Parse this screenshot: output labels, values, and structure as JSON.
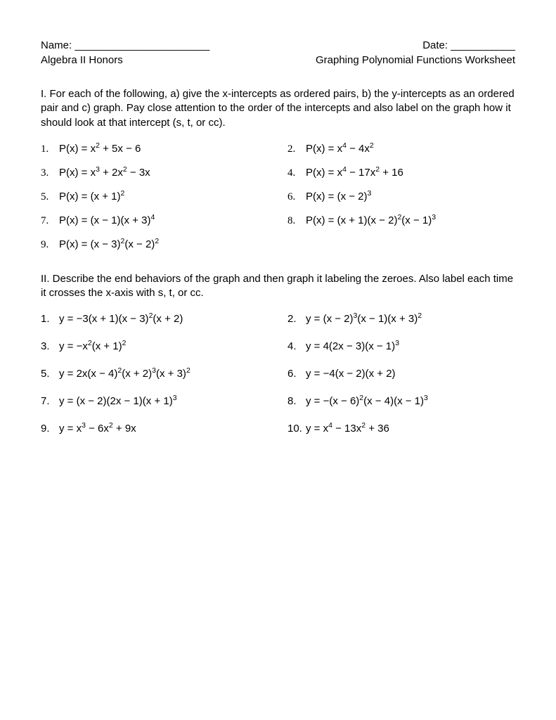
{
  "header": {
    "name_label": "Name: _______________________",
    "date_label": "Date: ___________",
    "course": "Algebra II Honors",
    "title": "Graphing Polynomial Functions Worksheet"
  },
  "section1": {
    "instructions": "I. For each of the following, a) give the x-intercepts as ordered pairs, b) the y-intercepts as an ordered pair and c) graph.  Pay close attention to the order of the intercepts and also label on the graph how it should look at that intercept (s, t, or cc).",
    "items": [
      {
        "n": "1.",
        "eq": "P(x) = x<sup>2</sup> + 5x − 6"
      },
      {
        "n": "2.",
        "eq": "P(x) = x<sup>4</sup> − 4x<sup>2</sup>"
      },
      {
        "n": "3.",
        "eq": "P(x) = x<sup>3</sup> + 2x<sup>2</sup> − 3x"
      },
      {
        "n": "4.",
        "eq": "P(x) = x<sup>4</sup> − 17x<sup>2</sup> + 16"
      },
      {
        "n": "5.",
        "eq": "P(x) = (x + 1)<sup>2</sup>"
      },
      {
        "n": "6.",
        "eq": "P(x) = (x − 2)<sup>3</sup>"
      },
      {
        "n": "7.",
        "eq": "P(x) = (x − 1)(x + 3)<sup>4</sup>"
      },
      {
        "n": "8.",
        "eq": "P(x) = (x + 1)(x − 2)<sup>2</sup>(x − 1)<sup>3</sup>"
      },
      {
        "n": "9.",
        "eq": "P(x) = (x − 3)<sup>2</sup>(x − 2)<sup>2</sup>"
      }
    ]
  },
  "section2": {
    "instructions": "II. Describe the end behaviors of the graph and then graph it labeling the zeroes.  Also label each time it crosses the x-axis with s, t, or cc.",
    "items": [
      {
        "n": "1.",
        "eq": "y = −3(x + 1)(x − 3)<sup>2</sup>(x + 2)"
      },
      {
        "n": "2.",
        "eq": "y = (x − 2)<sup>3</sup>(x − 1)(x + 3)<sup>2</sup>"
      },
      {
        "n": "3.",
        "eq": "y = −x<sup>2</sup>(x + 1)<sup>2</sup>"
      },
      {
        "n": "4.",
        "eq": "y = 4(2x − 3)(x − 1)<sup>3</sup>"
      },
      {
        "n": "5.",
        "eq": "y = 2x(x − 4)<sup>2</sup>(x + 2)<sup>3</sup>(x + 3)<sup>2</sup>"
      },
      {
        "n": "6.",
        "eq": "y = −4(x − 2)(x + 2)"
      },
      {
        "n": "7.",
        "eq": "y = (x − 2)(2x − 1)(x + 1)<sup>3</sup>"
      },
      {
        "n": "8.",
        "eq": "y = −(x − 6)<sup>2</sup>(x − 4)(x − 1)<sup>3</sup>"
      },
      {
        "n": "9.",
        "eq": "y = x<sup>3</sup> − 6x<sup>2</sup> + 9x"
      },
      {
        "n": "10.",
        "eq": "y = x<sup>4</sup> − 13x<sup>2</sup> + 36"
      }
    ]
  }
}
